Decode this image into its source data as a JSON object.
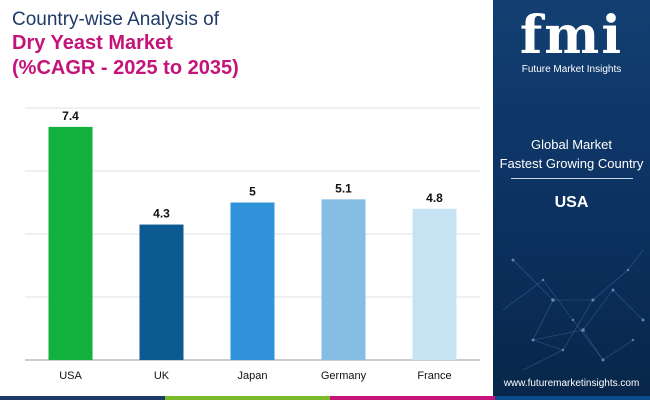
{
  "title": {
    "line1": "Country-wise Analysis of",
    "line2": "Dry Yeast Market",
    "line3": "(%CAGR - 2025 to 2035)"
  },
  "chart_data": {
    "type": "bar",
    "title": "Country-wise Analysis of Dry Yeast Market (%CAGR - 2025 to 2035)",
    "categories": [
      "USA",
      "UK",
      "Japan",
      "Germany",
      "France"
    ],
    "values": [
      7.4,
      4.3,
      5,
      5.1,
      4.8
    ],
    "labels": [
      "7.4",
      "4.3",
      "5",
      "5.1",
      "4.8"
    ],
    "colors": [
      "#12b03c",
      "#0d5a92",
      "#3093d9",
      "#85bde3",
      "#c6e3f4"
    ],
    "xlabel": "",
    "ylabel": "",
    "ylim": [
      0,
      8
    ],
    "grid": true
  },
  "panel": {
    "logo_text": "fmi",
    "logo_subtitle": "Future Market Insights",
    "heading_line1": "Global Market",
    "heading_line2": "Fastest Growing Country",
    "value": "USA",
    "website": "www.futuremarketinsights.com",
    "background_color": "#0c3160"
  },
  "strip_colors": [
    "#1e3a68",
    "#7ab929",
    "#c4147a",
    "#0d4c8a"
  ]
}
